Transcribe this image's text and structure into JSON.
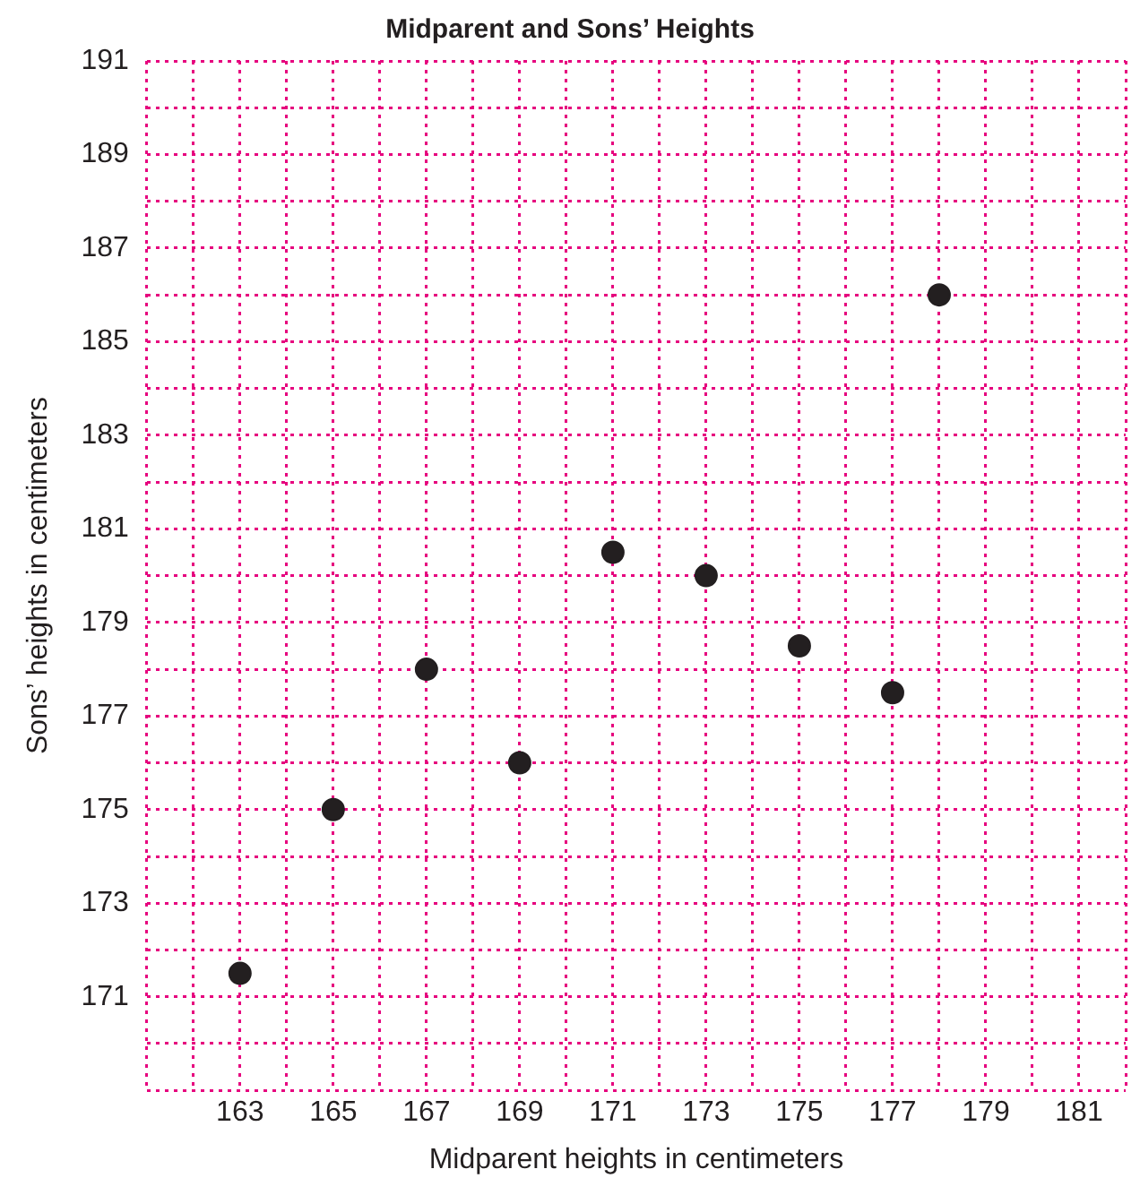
{
  "chart_data": {
    "type": "scatter",
    "title": "Midparent and Sons’ Heights",
    "xlabel": "Midparent heights in centimeters",
    "ylabel": "Sons’ heights in centimeters",
    "x": [
      163,
      165,
      167,
      169,
      171,
      173,
      175,
      177,
      178
    ],
    "series": [
      {
        "color": "#231f20",
        "values": [
          171.5,
          175,
          178,
          176,
          180.5,
          180,
          178.5,
          177.5,
          186
        ]
      }
    ],
    "xlim": [
      161,
      182
    ],
    "xticks": [
      {
        "value": 161,
        "label": null
      },
      {
        "value": 162,
        "label": null
      },
      163,
      {
        "value": 164,
        "label": null
      },
      165,
      {
        "value": 166,
        "label": null
      },
      167,
      {
        "value": 168,
        "label": null
      },
      169,
      {
        "value": 170,
        "label": null
      },
      171,
      {
        "value": 172,
        "label": null
      },
      173,
      {
        "value": 174,
        "label": null
      },
      175,
      {
        "value": 176,
        "label": null
      },
      177,
      {
        "value": 178,
        "label": null
      },
      179,
      {
        "value": 180,
        "label": null
      },
      181,
      {
        "value": 182,
        "label": null
      }
    ],
    "ylim": [
      169,
      191
    ],
    "yticks": [
      {
        "value": 169,
        "label": null
      },
      {
        "value": 170,
        "label": null
      },
      171,
      {
        "value": 172,
        "label": null
      },
      173,
      {
        "value": 174,
        "label": null
      },
      175,
      {
        "value": 176,
        "label": null
      },
      177,
      {
        "value": 178,
        "label": null
      },
      179,
      {
        "value": 180,
        "label": null
      },
      181,
      {
        "value": 182,
        "label": null
      },
      183,
      {
        "value": 184,
        "label": null
      },
      185,
      {
        "value": 186,
        "label": null
      },
      187,
      {
        "value": 188,
        "label": null
      },
      189,
      {
        "value": 190,
        "label": null
      },
      191
    ],
    "grid": true,
    "marker": "circle",
    "legend": false
  }
}
